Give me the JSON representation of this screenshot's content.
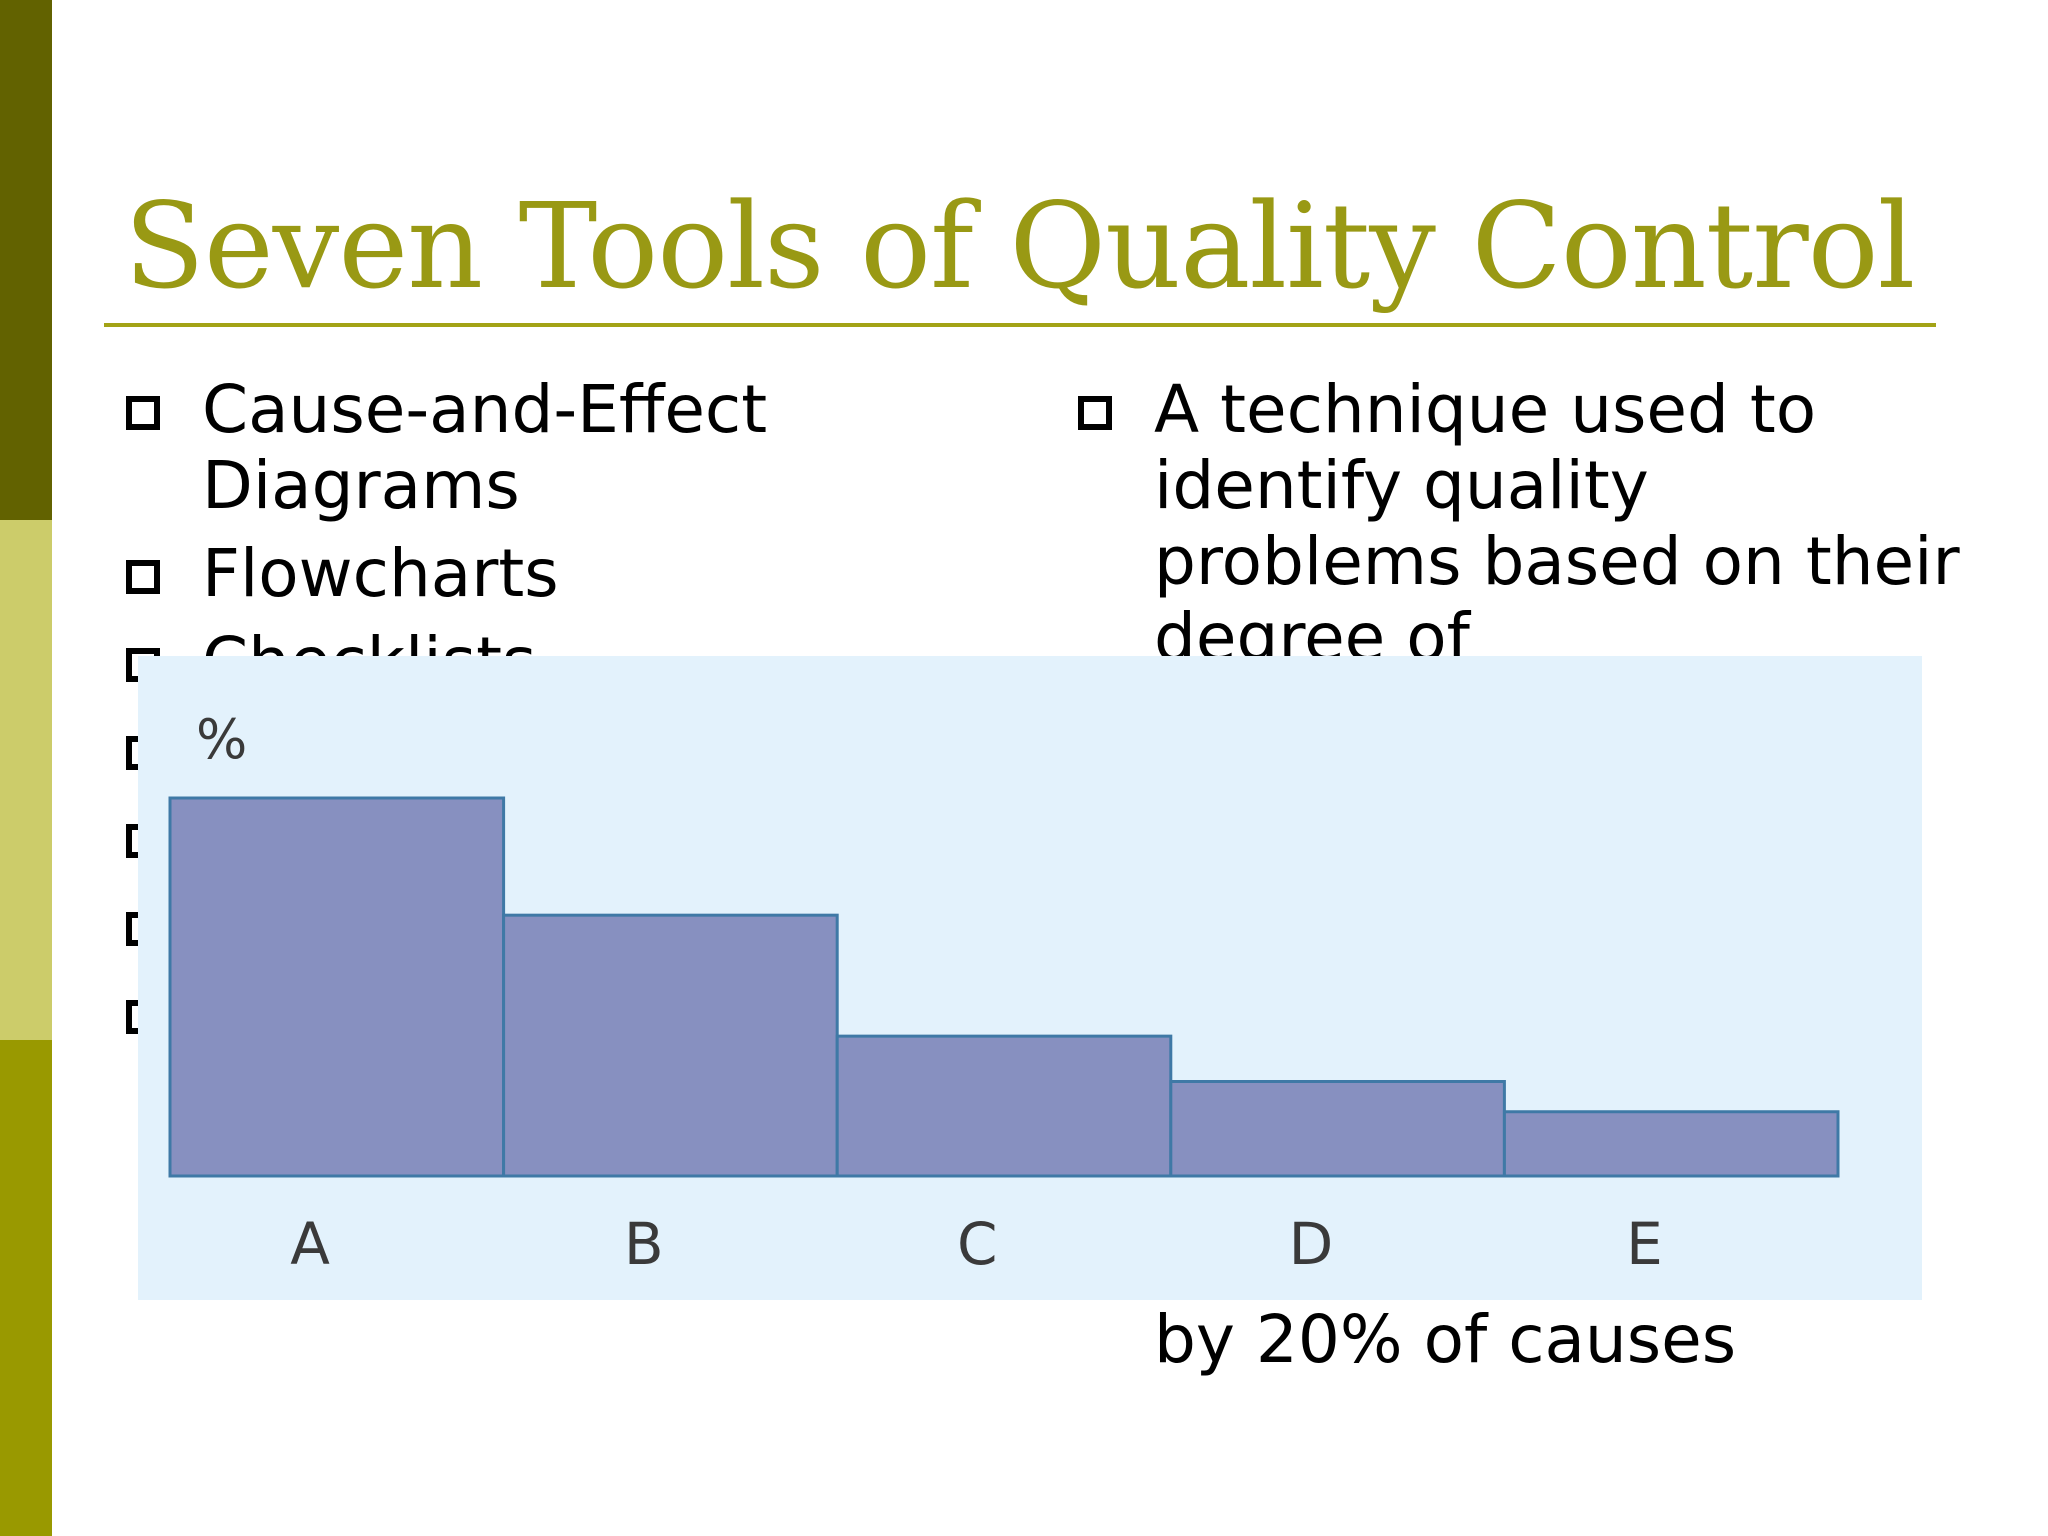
{
  "slide": {
    "title": "Seven Tools of Quality Control",
    "left_bullets": [
      "Cause-and-Effect Diagrams",
      "Flowcharts",
      "Checklists",
      "",
      "",
      "",
      ""
    ],
    "right_bullets": [
      "A technique used to identify quality problems based on their degree of"
    ],
    "right_tail": "by 20% of causes"
  },
  "colors": {
    "accent_dark": "#626200",
    "accent_light": "#cccc6a",
    "accent": "#999900",
    "title": "#999914",
    "bar_fill": "#8790c0",
    "bar_stroke": "#3f79a6",
    "chart_bg": "#e3f2fc"
  },
  "chart_data": {
    "type": "bar",
    "categories": [
      "A",
      "B",
      "C",
      "D",
      "E"
    ],
    "values": [
      100,
      69,
      37,
      25,
      17
    ],
    "ylabel": "%",
    "ylim": [
      0,
      100
    ],
    "grid": false,
    "legend": "none"
  }
}
